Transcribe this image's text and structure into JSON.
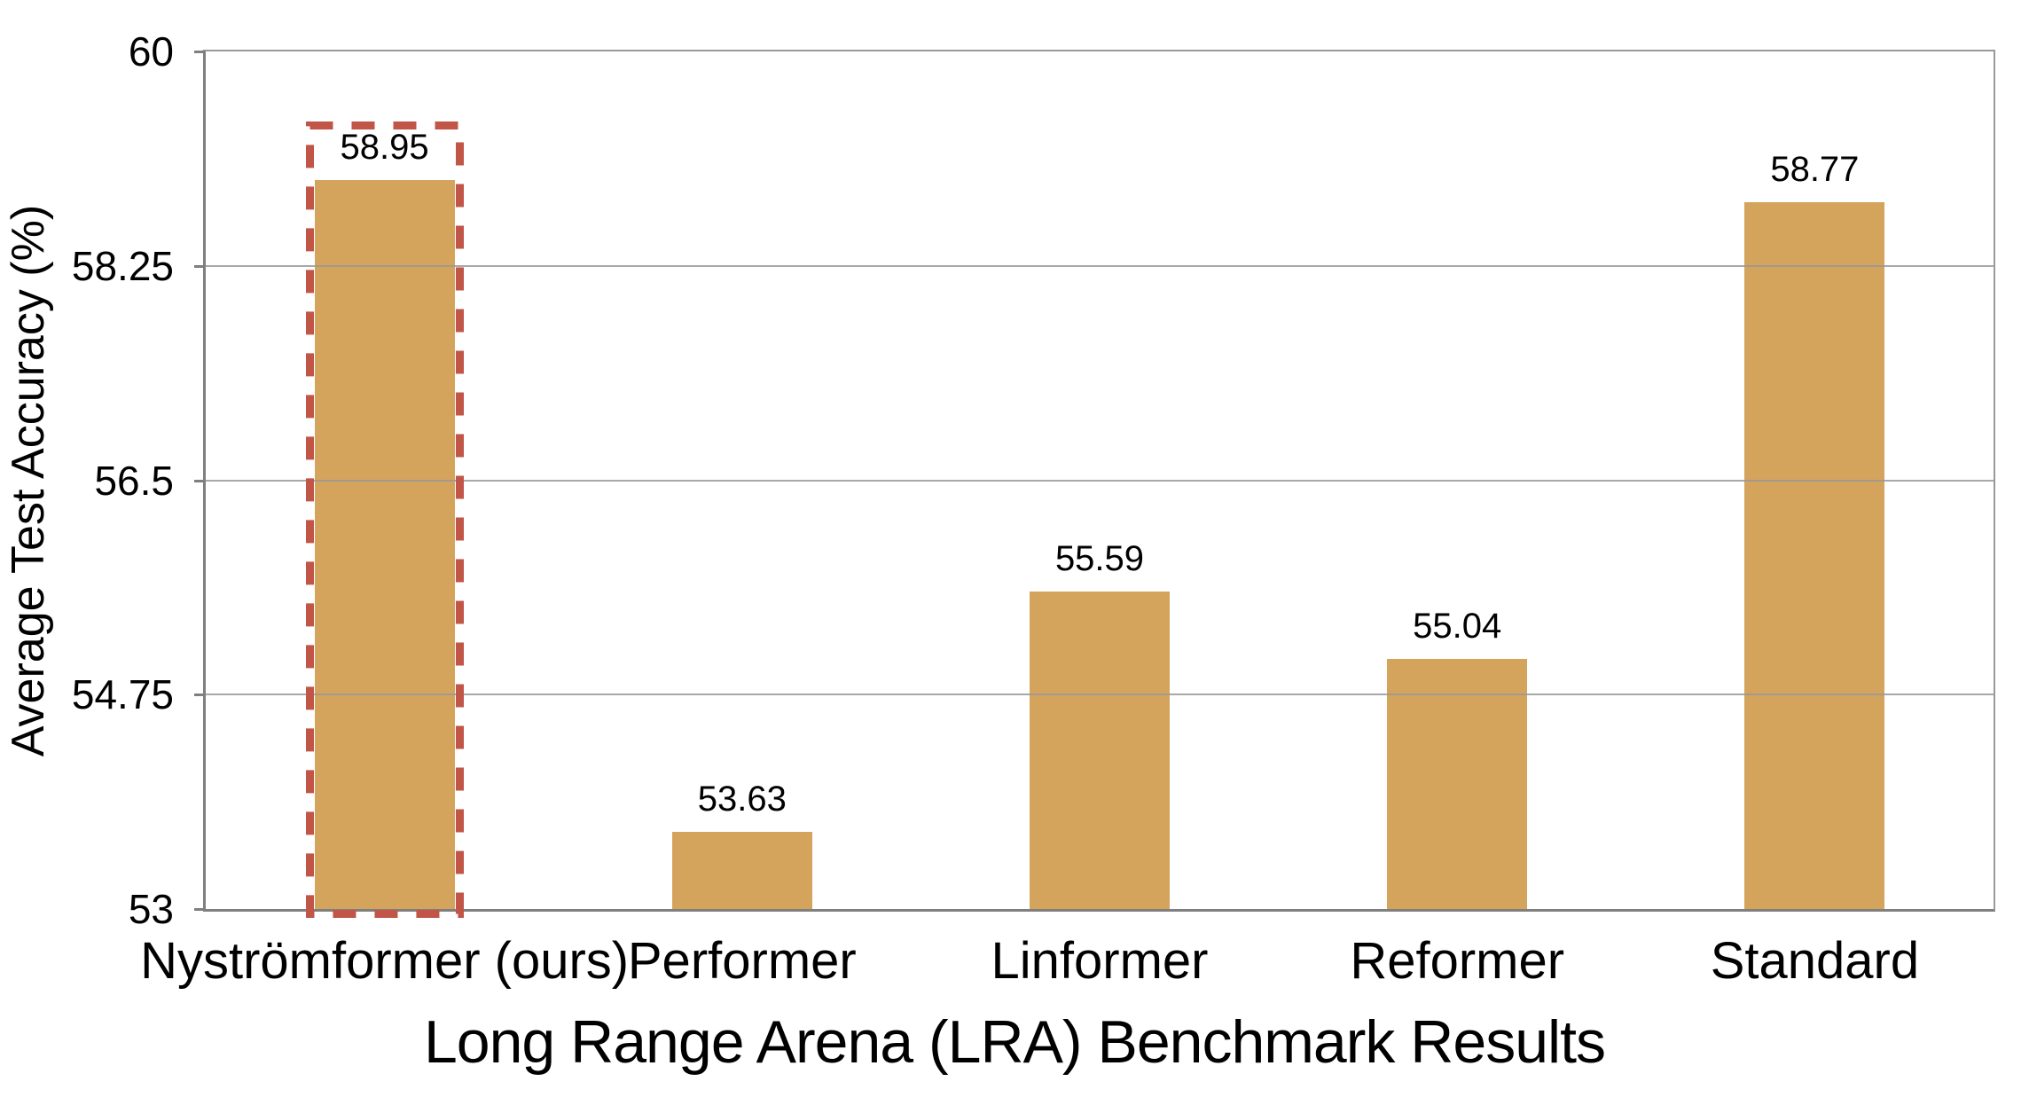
{
  "chart_data": {
    "type": "bar",
    "title": "Long Range Arena (LRA) Benchmark Results",
    "ylabel": "Average Test Accuracy (%)",
    "xlabel": "",
    "categories": [
      "Nyströmformer (ours)",
      "Performer",
      "Linformer",
      "Reformer",
      "Standard"
    ],
    "values": [
      58.95,
      53.63,
      55.59,
      55.04,
      58.77
    ],
    "value_labels": [
      "58.95",
      "53.63",
      "55.59",
      "55.04",
      "58.77"
    ],
    "ylim": [
      53,
      60
    ],
    "yticks": [
      "53",
      "54.75",
      "56.5",
      "58.25",
      "60"
    ],
    "grid": "horizontal",
    "legend_position": "none",
    "colors": {
      "bar": "#D5A45C",
      "highlight_box": "#C05548",
      "gridline": "#999999",
      "axis": "#7f7f7f"
    },
    "highlight": {
      "category_index": 0,
      "style": "dashed-box"
    }
  }
}
